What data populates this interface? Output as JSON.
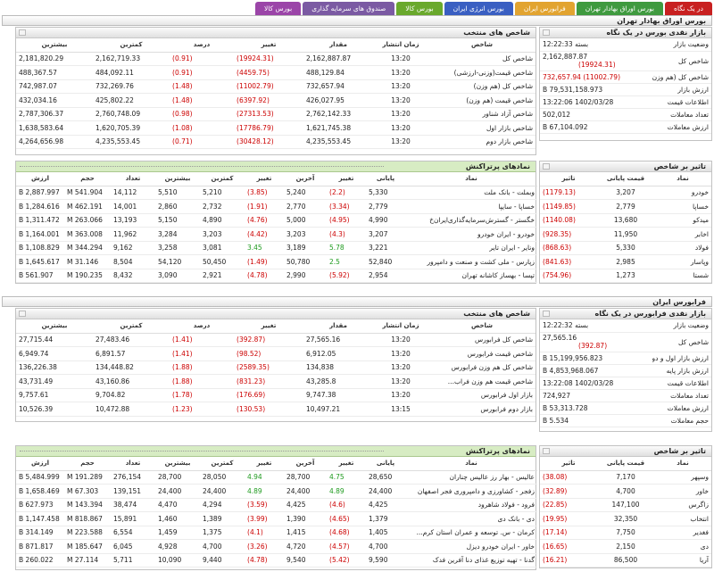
{
  "tabs": [
    {
      "label": "در یک نگاه",
      "color": "#c82020"
    },
    {
      "label": "بورس اوراق بهادار تهران",
      "color": "#3f9a3f"
    },
    {
      "label": "فرابورس ایران",
      "color": "#e2a430"
    },
    {
      "label": "بورس انرژی ایران",
      "color": "#3a5fc2"
    },
    {
      "label": "بورس کالا",
      "color": "#6aa92d"
    },
    {
      "label": "صندوق های سرمایه گذاری",
      "color": "#7b5aa3"
    },
    {
      "label": "بورس کالا",
      "color": "#9b45a8"
    }
  ],
  "sections": [
    {
      "title": "بورس اوراق بهادار تهران",
      "market": {
        "title": "بازار نقدی بورس در یک نگاه",
        "rows": [
          {
            "k": "وضعیت بازار",
            "v": "بسته 12:22:33",
            "neg": false
          },
          {
            "k": "شاخص کل",
            "v": "2,162,887.87",
            "v2": "(19924.31)",
            "neg": true
          },
          {
            "k": "شاخص کل (هم وزن)",
            "v": "(11002.79) 732,657.94",
            "neg": true
          },
          {
            "k": "ارزش بازار",
            "v": "79,531,158.973 B",
            "neg": false
          },
          {
            "k": "اطلاعات قیمت",
            "v": "1402/03/28 13:22:06",
            "neg": false
          },
          {
            "k": "تعداد معاملات",
            "v": "502,012",
            "neg": false
          },
          {
            "k": "ارزش معاملات",
            "v": "67,104.092 B",
            "neg": false
          }
        ]
      },
      "indices": {
        "title": "شاخص های منتخب",
        "headers": [
          "شاخص",
          "زمان انتشار",
          "مقدار",
          "تغییر",
          "درصد",
          "کمترین",
          "بیشترین"
        ],
        "rows": [
          [
            "شاخص کل",
            "13:20",
            "2,162,887.87",
            "(19924.31)",
            "(0.91)",
            "2,162,719.33",
            "2,181,820.29"
          ],
          [
            "شاخص قیمت(وزنی-ارزشی)",
            "13:20",
            "488,129.84",
            "(4459.75)",
            "(0.91)",
            "484,092.11",
            "488,367.57"
          ],
          [
            "شاخص کل (هم وزن)",
            "13:20",
            "732,657.94",
            "(11002.79)",
            "(1.48)",
            "732,269.76",
            "742,987.07"
          ],
          [
            "شاخص قیمت (هم وزن)",
            "13:20",
            "426,027.95",
            "(6397.92)",
            "(1.48)",
            "425,802.22",
            "432,034.16"
          ],
          [
            "شاخص آزاد شناور",
            "13:20",
            "2,762,142.33",
            "(27313.53)",
            "(0.98)",
            "2,760,748.09",
            "2,787,306.37"
          ],
          [
            "شاخص بازار اول",
            "13:20",
            "1,621,745.38",
            "(17786.79)",
            "(1.08)",
            "1,620,705.39",
            "1,638,583.64"
          ],
          [
            "شاخص بازار دوم",
            "13:20",
            "4,235,553.45",
            "(30428.12)",
            "(0.71)",
            "4,235,553.45",
            "4,264,656.98"
          ]
        ]
      },
      "impact": {
        "title": "تاثیر بر شاخص",
        "headers": [
          "نماد",
          "قیمت پایانی",
          "تاثیر"
        ],
        "rows": [
          [
            "خودرو",
            "3,207",
            "(1179.13)"
          ],
          [
            "خساپا",
            "2,779",
            "(1149.85)"
          ],
          [
            "میدکو",
            "13,680",
            "(1140.08)"
          ],
          [
            "اخابر",
            "11,950",
            "(928.35)"
          ],
          [
            "فولاد",
            "5,330",
            "(868.63)"
          ],
          [
            "وپاسار",
            "2,985",
            "(841.63)"
          ],
          [
            "شستا",
            "1,273",
            "(754.96)"
          ]
        ]
      },
      "active": {
        "title": "نمادهای پرتراکنش",
        "headers": [
          "نماد",
          "پایانی",
          "تغییر",
          "آخرین",
          "تغییر",
          "کمترین",
          "بیشترین",
          "تعداد",
          "حجم",
          "ارزش"
        ],
        "rows": [
          [
            "وبملت - بانک ملت",
            "5,330",
            "(2.2)",
            "5,240",
            "(3.85)",
            "5,210",
            "5,510",
            "14,112",
            "541.904 M",
            "2,887.997 B"
          ],
          [
            "خساپا - سایپا",
            "2,779",
            "(3.34)",
            "2,770",
            "(1.91)",
            "2,732",
            "2,860",
            "14,001",
            "462.191 M",
            "1,284.616 B"
          ],
          [
            "خگستر - گسترش‌سرمایه‌گذاری‌ایران‌خ",
            "4,990",
            "(4.95)",
            "5,000",
            "(4.76)",
            "4,890",
            "5,150",
            "13,193",
            "263.066 M",
            "1,311.472 B"
          ],
          [
            "خودرو - ایران خودرو",
            "3,207",
            "(4.3)",
            "3,203",
            "(4.42)",
            "3,203",
            "3,284",
            "11,962",
            "363.008 M",
            "1,164.001 B"
          ],
          [
            "ونایر - ایران تایر",
            "3,221",
            "5.78",
            "3,189",
            "3.45",
            "3,081",
            "3,258",
            "9,162",
            "344.294 M",
            "1,108.829 B"
          ],
          [
            "زپارس - ملی کشت و صنعت و دامپرور",
            "52,840",
            "2.5",
            "50,780",
            "(1.49)",
            "50,450",
            "54,120",
            "8,504",
            "31.146 M",
            "1,645.617 B"
          ],
          [
            "تپسا - بهساز کاشانه تهران",
            "2,954",
            "(5.92)",
            "2,990",
            "(4.78)",
            "2,921",
            "3,090",
            "8,432",
            "190.235 M",
            "561.907 B"
          ]
        ]
      }
    },
    {
      "title": "فرابورس ایران",
      "market": {
        "title": "بازار نقدی فرابورس در یک نگاه",
        "rows": [
          {
            "k": "وضعیت بازار",
            "v": "بسته 12:22:32",
            "neg": false
          },
          {
            "k": "شاخص کل",
            "v": "27,565.16",
            "v2": "(392.87)",
            "neg": true
          },
          {
            "k": "ارزش بازار اول و دوم",
            "v": "15,199,956.823 B",
            "neg": false
          },
          {
            "k": "ارزش بازار پایه",
            "v": "4,853,968.067 B",
            "neg": false
          },
          {
            "k": "اطلاعات قیمت",
            "v": "1402/03/28 13:22:08",
            "neg": false
          },
          {
            "k": "تعداد معاملات",
            "v": "724,927",
            "neg": false
          },
          {
            "k": "ارزش معاملات",
            "v": "53,313.728 B",
            "neg": false
          },
          {
            "k": "حجم معاملات",
            "v": "5.534 B",
            "neg": false
          }
        ]
      },
      "indices": {
        "title": "شاخص های منتخب",
        "headers": [
          "شاخص",
          "زمان انتشار",
          "مقدار",
          "تغییر",
          "درصد",
          "کمترین",
          "بیشترین"
        ],
        "rows": [
          [
            "شاخص کل فرابورس",
            "13:20",
            "27,565.16",
            "(392.87)",
            "(1.41)",
            "27,483.46",
            "27,715.44"
          ],
          [
            "شاخص قیمت فرابورس",
            "13:20",
            "6,912.05",
            "(98.52)",
            "(1.41)",
            "6,891.57",
            "6,949.74"
          ],
          [
            "شاخص کل هم وزن فرابورس",
            "13:20",
            "134,838",
            "(2589.35)",
            "(1.88)",
            "134,448.82",
            "136,226.38"
          ],
          [
            "شاخص قیمت هم وزن فراب...",
            "13:20",
            "43,285.8",
            "(831.23)",
            "(1.88)",
            "43,160.86",
            "43,731.49"
          ],
          [
            "بازار اول فرابورس",
            "13:20",
            "9,747.38",
            "(176.69)",
            "(1.78)",
            "9,704.82",
            "9,757.61"
          ],
          [
            "بازار دوم فرابورس",
            "13:15",
            "10,497.21",
            "(130.53)",
            "(1.23)",
            "10,472.88",
            "10,526.39"
          ]
        ]
      },
      "impact": {
        "title": "تاثیر بر شاخص",
        "headers": [
          "نماد",
          "قیمت پایانی",
          "تاثیر"
        ],
        "rows": [
          [
            "وسپهر",
            "7,170",
            "(38.08)"
          ],
          [
            "خاور",
            "4,700",
            "(32.89)"
          ],
          [
            "زاگرس",
            "147,100",
            "(22.85)"
          ],
          [
            "انتخاب",
            "32,350",
            "(19.95)"
          ],
          [
            "فغدیر",
            "7,750",
            "(17.14)"
          ],
          [
            "دی",
            "2,150",
            "(16.65)"
          ],
          [
            "آریا",
            "86,500",
            "(16.21)"
          ]
        ]
      },
      "active": {
        "title": "نمادهای پرتراکنش",
        "headers": [
          "نماد",
          "پایانی",
          "تغییر",
          "آخرین",
          "تغییر",
          "کمترین",
          "بیشترین",
          "تعداد",
          "حجم",
          "ارزش"
        ],
        "rows": [
          [
            "عالیس - بهار رز عالیس چناران",
            "28,650",
            "4.75",
            "28,700",
            "4.94",
            "28,050",
            "28,700",
            "276,154",
            "191.289 M",
            "5,484.999 B"
          ],
          [
            "زفجر - کشاورزی و دامپروری فجر اصفهان",
            "24,400",
            "4.89",
            "24,400",
            "4.89",
            "24,400",
            "24,400",
            "139,151",
            "67.303 M",
            "1,658.469 B"
          ],
          [
            "فرود - فولاد شاهرود",
            "4,425",
            "(4.6)",
            "4,425",
            "(3.59)",
            "4,294",
            "4,470",
            "38,474",
            "143.394 M",
            "627.973 B"
          ],
          [
            "دی - بانک دی",
            "1,379",
            "(4.65)",
            "1,390",
            "(3.99)",
            "1,389",
            "1,460",
            "15,891",
            "818.867 M",
            "1,147.458 B"
          ],
          [
            "کرمان - س. توسعه و عمران استان کرم...",
            "1,405",
            "(4.68)",
            "1,415",
            "(4.1)",
            "1,375",
            "1,459",
            "6,554",
            "223.588 M",
            "314.149 B"
          ],
          [
            "خاور - ایران خودرو دیزل",
            "4,700",
            "(4.57)",
            "4,720",
            "(3.26)",
            "4,700",
            "4,928",
            "6,045",
            "185.647 M",
            "871.817 B"
          ],
          [
            "گدنا - تهیه توزیع غذای دنا آفرین فدک",
            "9,590",
            "(5.42)",
            "9,540",
            "(4.78)",
            "9,440",
            "10,090",
            "5,711",
            "27.114 M",
            "260.022 B"
          ]
        ]
      }
    }
  ]
}
